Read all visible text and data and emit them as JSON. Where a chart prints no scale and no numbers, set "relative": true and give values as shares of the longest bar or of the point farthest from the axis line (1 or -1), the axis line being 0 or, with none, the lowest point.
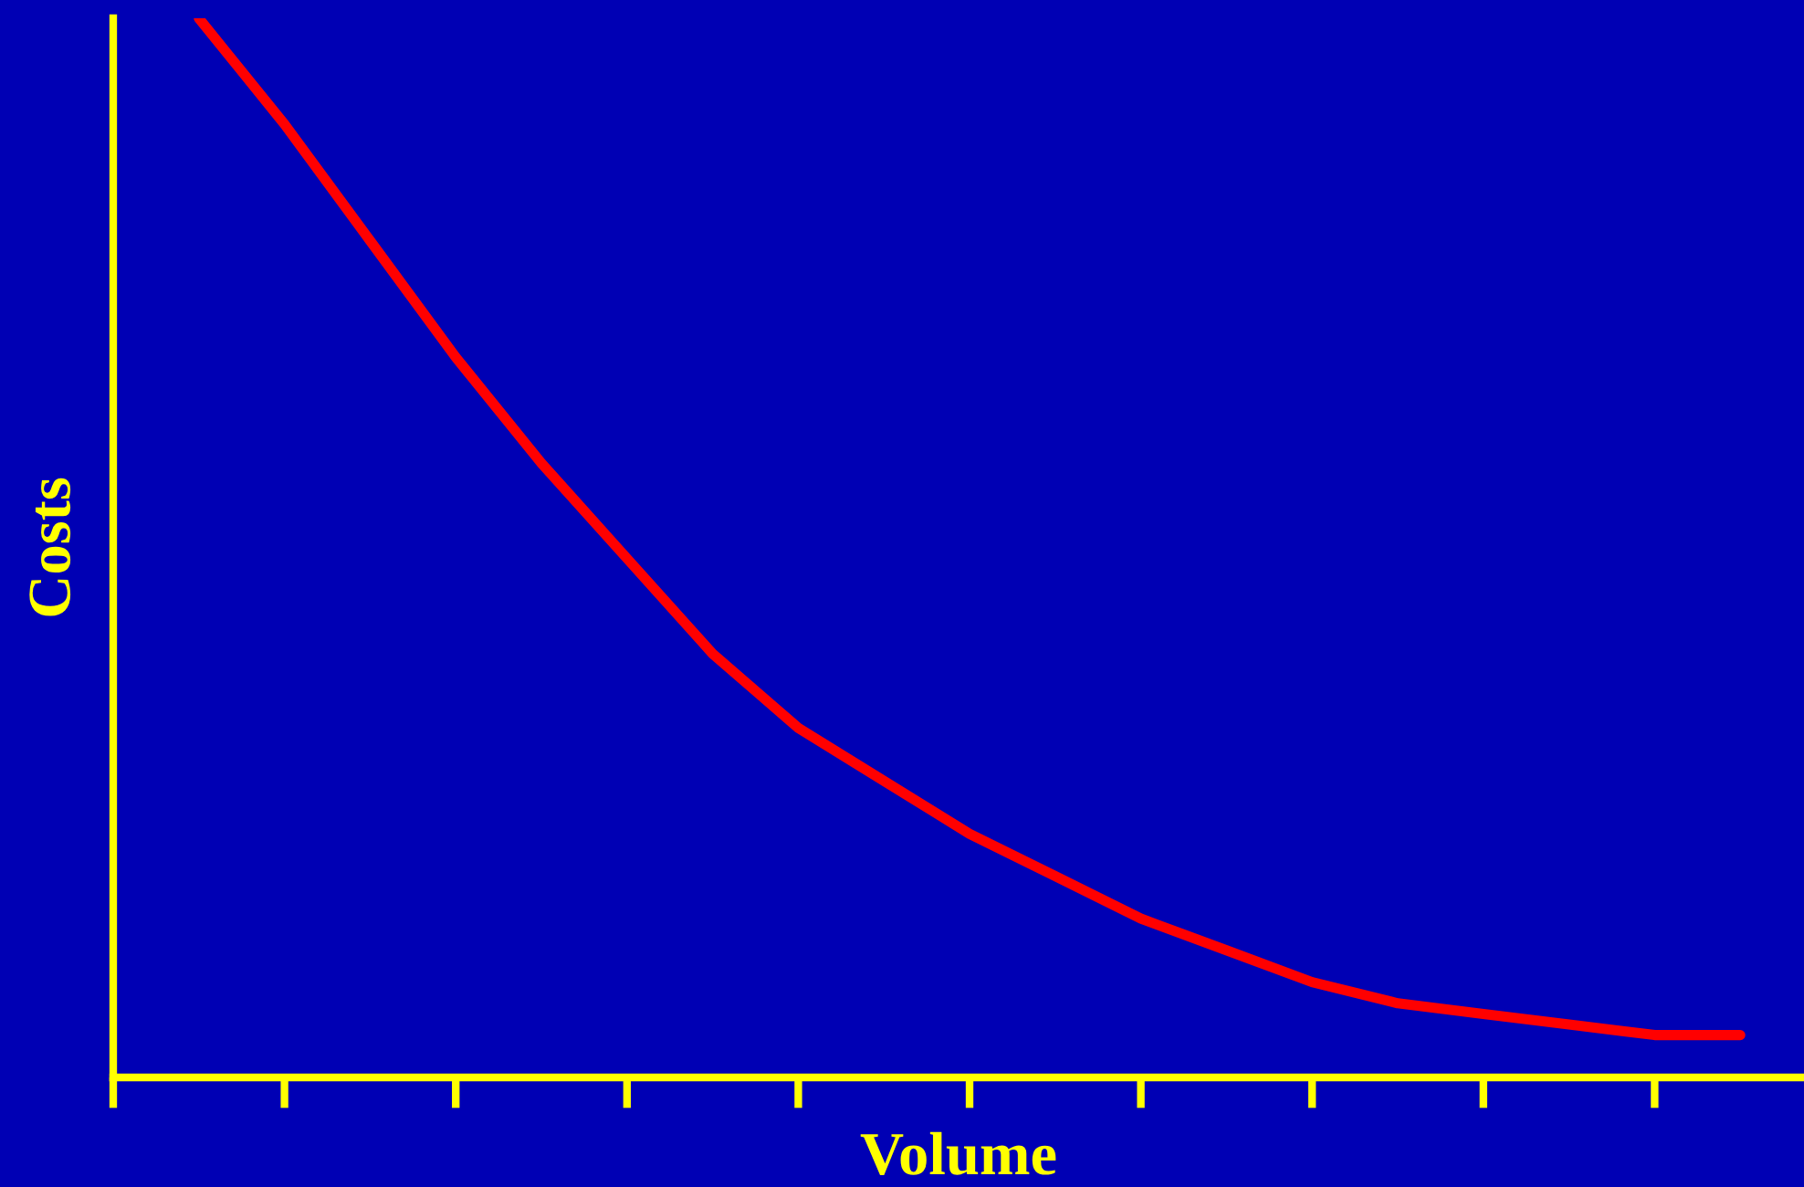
{
  "chart_data": {
    "type": "line",
    "xlabel": "Volume",
    "ylabel": "Costs",
    "relative": true,
    "categories": [
      null,
      null,
      null,
      null,
      null,
      null,
      null,
      null,
      null,
      null,
      null,
      null,
      null,
      null,
      null,
      null,
      null,
      null,
      null
    ],
    "series": [
      {
        "color": "#ff0000",
        "values": [
          1.0,
          0.9,
          0.79,
          0.68,
          0.58,
          0.49,
          0.4,
          0.33,
          0.28,
          0.23,
          0.19,
          0.15,
          0.12,
          0.09,
          0.07,
          0.06,
          0.05,
          0.04,
          0.04
        ]
      }
    ],
    "line_style": "solid"
  }
}
